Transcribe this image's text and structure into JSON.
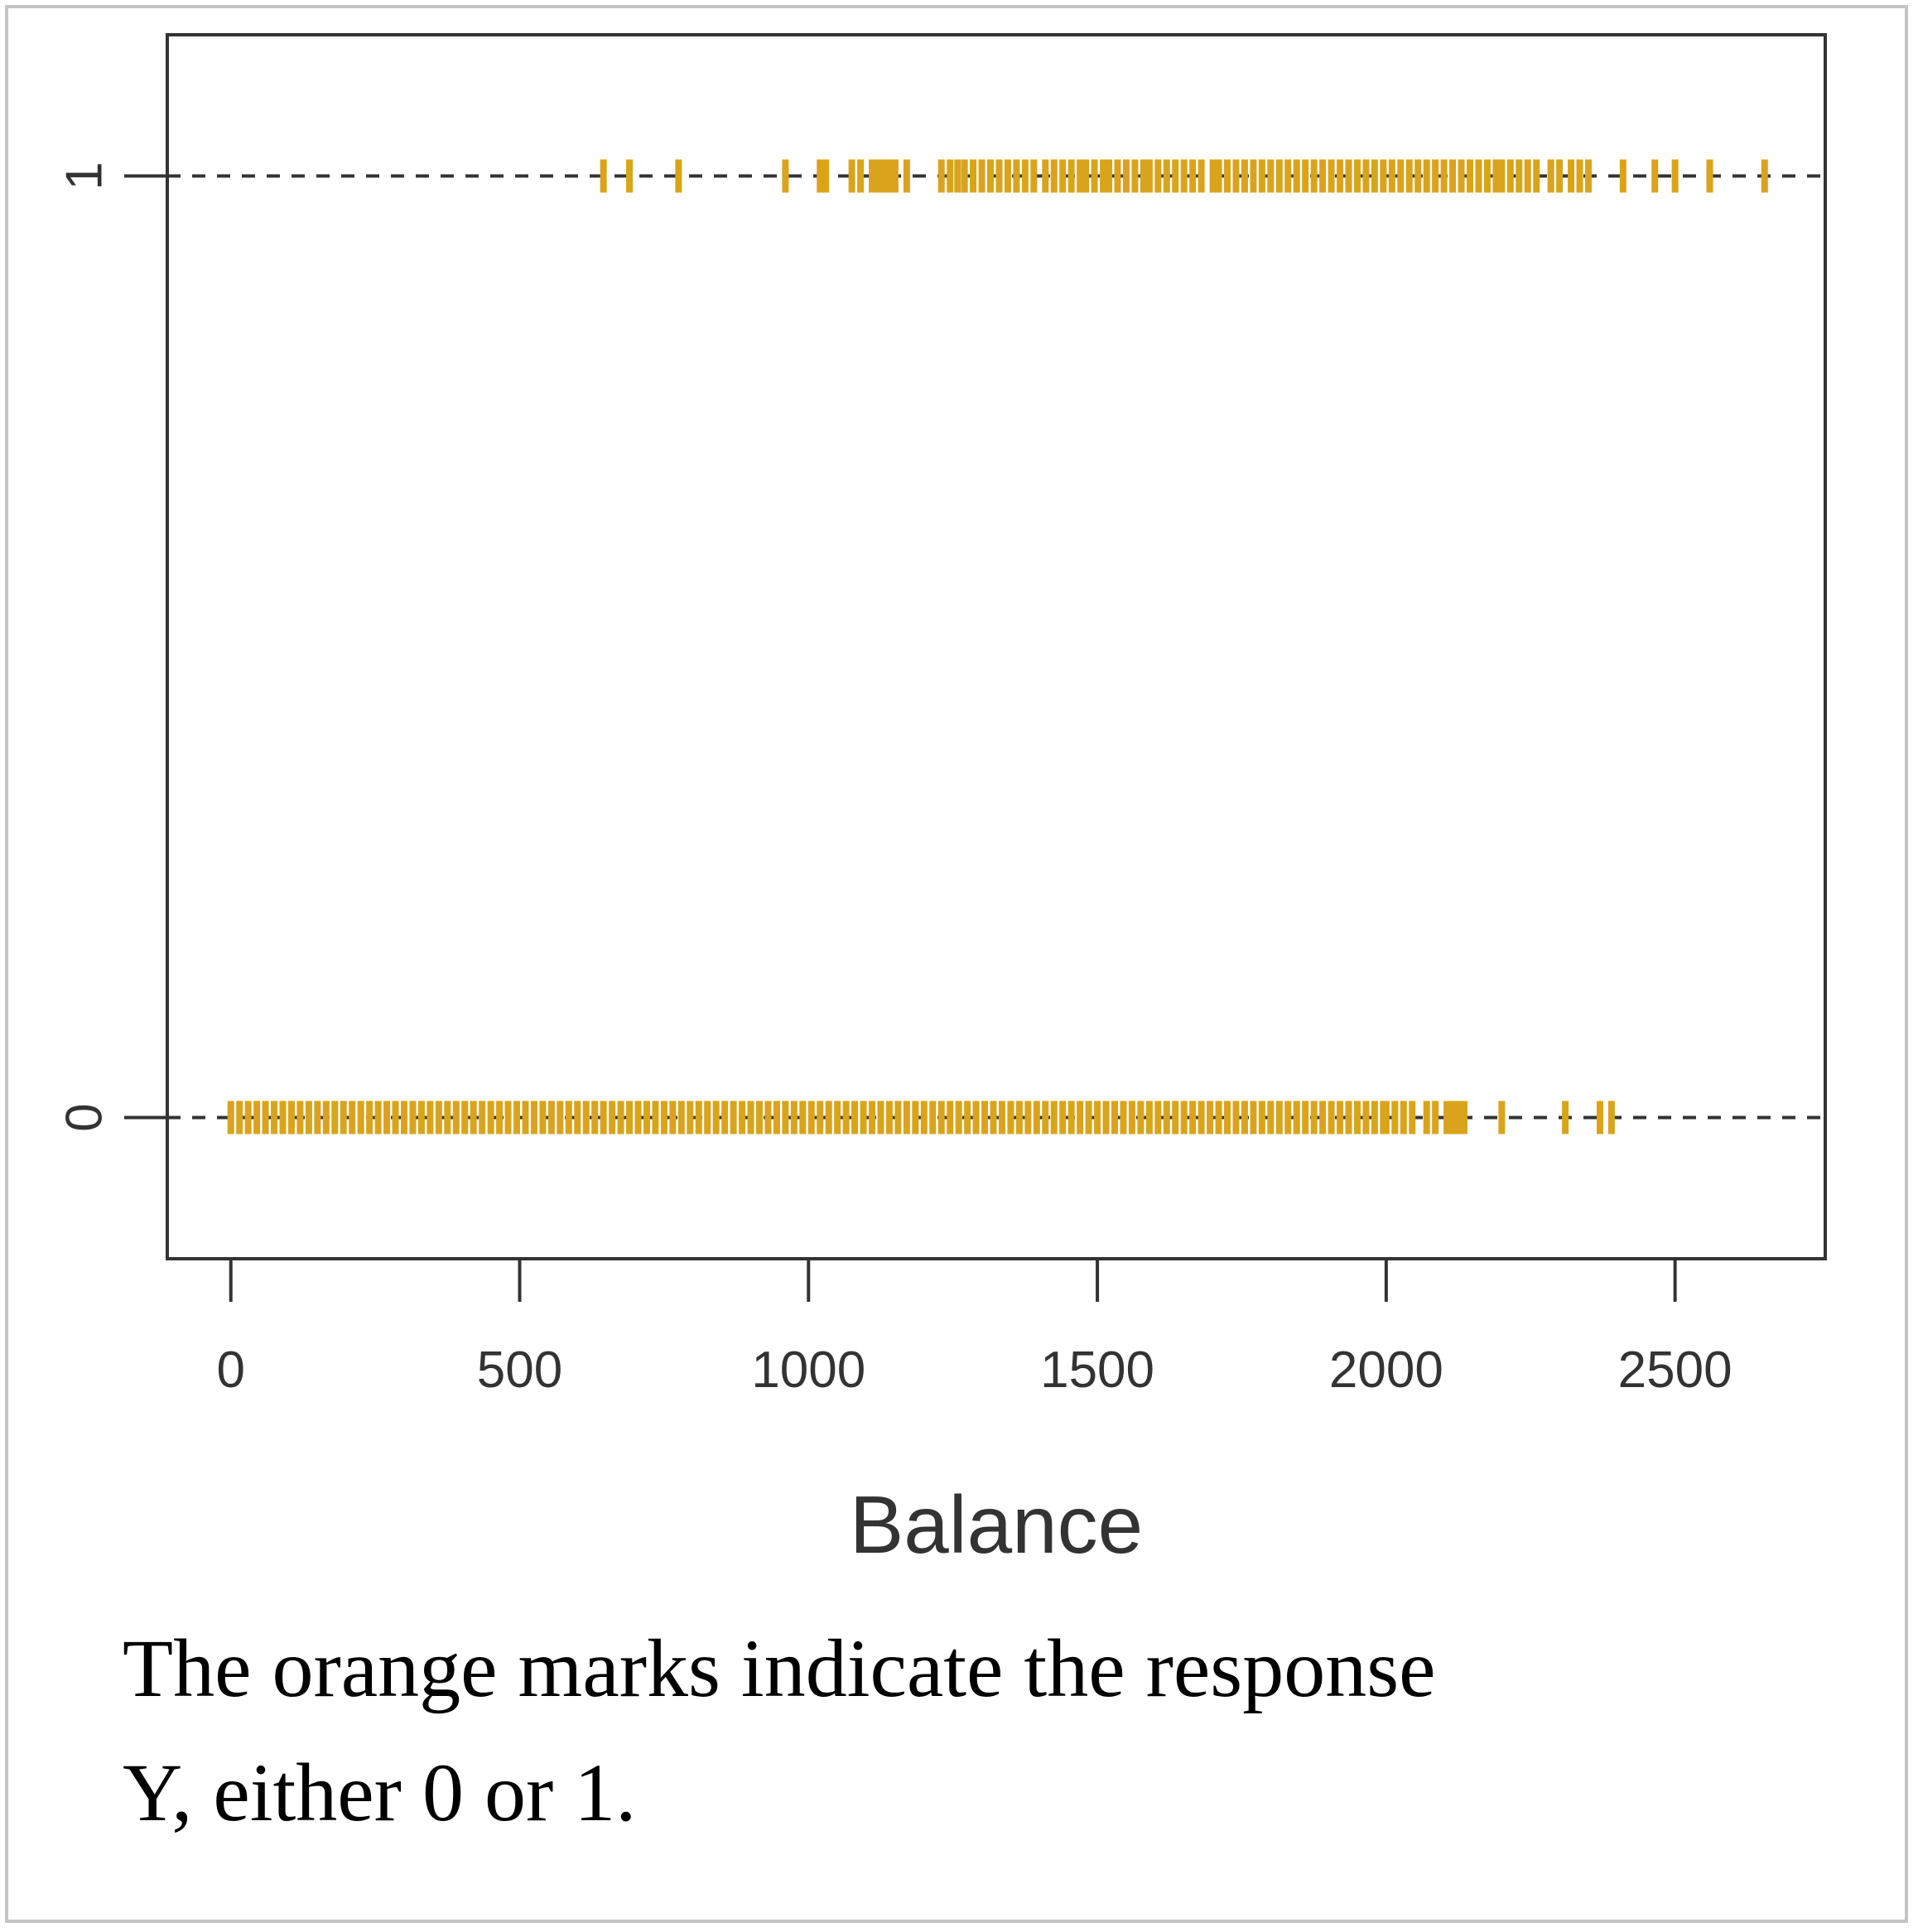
{
  "chart_data": {
    "type": "scatter",
    "xlabel": "Balance",
    "ylabel": "",
    "x_ticks": [
      0,
      500,
      1000,
      1500,
      2000,
      2500
    ],
    "y_ticks": [
      0,
      1
    ],
    "xlim": [
      -110,
      2760
    ],
    "ylim": [
      -0.15,
      1.15
    ],
    "marker": "|",
    "point_color": "#d9a41c",
    "reference_lines": [
      0,
      1
    ],
    "series": [
      {
        "y": 1,
        "points": [
          645,
          690,
          775,
          960,
          1020,
          1030,
          1075,
          1090,
          1110,
          1120,
          1130,
          1140,
          1150,
          1170,
          1230,
          1245,
          1258,
          1270,
          1285,
          1300,
          1315,
          1330,
          1345,
          1360,
          1375,
          1390,
          1410,
          1425,
          1440,
          1455,
          1470,
          1480,
          1495,
          1510,
          1520,
          1535,
          1550,
          1565,
          1580,
          1590,
          1605,
          1620,
          1635,
          1650,
          1665,
          1680,
          1700,
          1710,
          1725,
          1740,
          1755,
          1770,
          1785,
          1800,
          1815,
          1830,
          1845,
          1860,
          1875,
          1890,
          1905,
          1920,
          1935,
          1950,
          1965,
          1980,
          1995,
          2010,
          2025,
          2040,
          2055,
          2070,
          2085,
          2100,
          2115,
          2130,
          2145,
          2160,
          2175,
          2190,
          2200,
          2215,
          2230,
          2245,
          2260,
          2285,
          2300,
          2320,
          2335,
          2350,
          2410,
          2465,
          2500,
          2560,
          2655
        ]
      },
      {
        "y": 0,
        "points": [
          0,
          15,
          30,
          45,
          60,
          75,
          90,
          105,
          120,
          135,
          150,
          165,
          180,
          195,
          210,
          225,
          240,
          255,
          270,
          285,
          300,
          315,
          330,
          345,
          360,
          375,
          390,
          405,
          420,
          435,
          450,
          465,
          480,
          495,
          510,
          525,
          540,
          555,
          570,
          585,
          600,
          615,
          630,
          645,
          660,
          675,
          690,
          705,
          720,
          735,
          750,
          765,
          780,
          795,
          810,
          825,
          840,
          855,
          870,
          885,
          900,
          915,
          930,
          945,
          960,
          975,
          990,
          1005,
          1020,
          1035,
          1050,
          1065,
          1080,
          1095,
          1110,
          1125,
          1140,
          1155,
          1170,
          1185,
          1200,
          1215,
          1230,
          1245,
          1260,
          1275,
          1290,
          1305,
          1320,
          1335,
          1350,
          1365,
          1380,
          1395,
          1410,
          1425,
          1440,
          1455,
          1470,
          1485,
          1500,
          1515,
          1530,
          1545,
          1560,
          1575,
          1590,
          1605,
          1620,
          1635,
          1650,
          1665,
          1680,
          1695,
          1710,
          1725,
          1740,
          1755,
          1770,
          1785,
          1800,
          1815,
          1830,
          1845,
          1860,
          1875,
          1890,
          1905,
          1920,
          1935,
          1950,
          1965,
          1980,
          1995,
          2000,
          2015,
          2030,
          2045,
          2070,
          2085,
          2105,
          2115,
          2125,
          2135,
          2200,
          2310,
          2370,
          2390
        ]
      }
    ]
  },
  "caption": {
    "line1": "The orange marks indicate the response",
    "line2": "Y, either 0 or 1."
  }
}
